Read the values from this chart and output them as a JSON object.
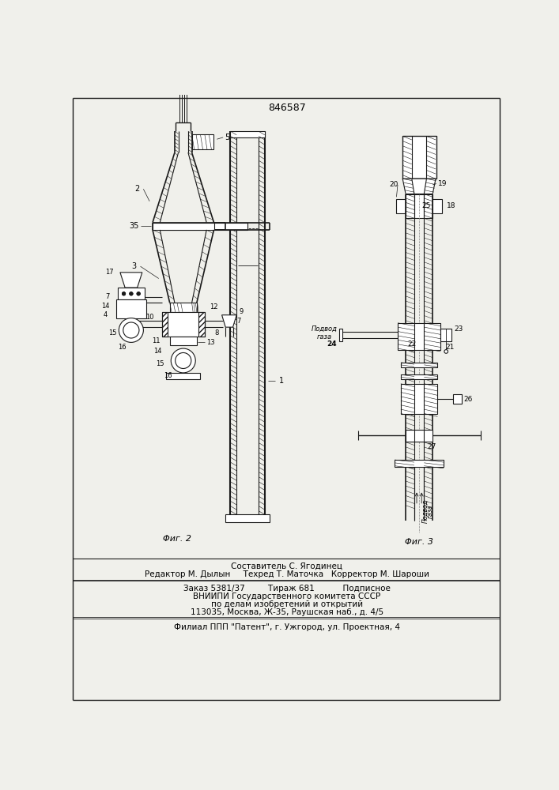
{
  "patent_number": "846587",
  "background_color": "#f0f0eb",
  "line_color": "#1a1a1a",
  "hatch_color": "#555555",
  "fig1_label": "Φиг. 2",
  "fig2_label": "Φиг. 3",
  "footer_lines": [
    "Составитель С. Ягодинец",
    "Редактор М. Дылын     Техред Т. Маточка   Корректор М. Шароши",
    "Заказ 5381/37         Тираж 681           Подписное",
    "ВНИИПИ Государственного комитета СССР",
    "по делам изобретений и открытий",
    "113035, Москва, Ж-35, Раушская наб., д. 4/5",
    "Филиал ППП \"Патент\", г. Ужгород, ул. Проектная, 4"
  ],
  "подвод_газа": "Подвод\nгаза"
}
